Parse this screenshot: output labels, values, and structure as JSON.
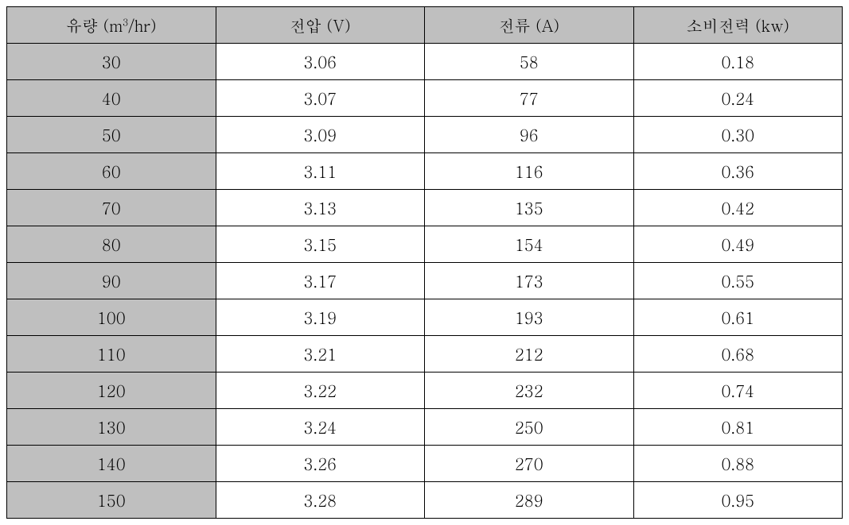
{
  "table": {
    "columns": [
      {
        "label_parts": [
          "유량 (m",
          "3",
          "/hr)"
        ],
        "has_superscript": true
      },
      {
        "label": "전압 (V)"
      },
      {
        "label": "전류 (A)"
      },
      {
        "label": "소비전력 (kw)"
      }
    ],
    "rows": [
      {
        "flow": "30",
        "voltage": "3.06",
        "current": "58",
        "power": "0.18"
      },
      {
        "flow": "40",
        "voltage": "3.07",
        "current": "77",
        "power": "0.24"
      },
      {
        "flow": "50",
        "voltage": "3.09",
        "current": "96",
        "power": "0.30"
      },
      {
        "flow": "60",
        "voltage": "3.11",
        "current": "116",
        "power": "0.36"
      },
      {
        "flow": "70",
        "voltage": "3.13",
        "current": "135",
        "power": "0.42"
      },
      {
        "flow": "80",
        "voltage": "3.15",
        "current": "154",
        "power": "0.49"
      },
      {
        "flow": "90",
        "voltage": "3.17",
        "current": "173",
        "power": "0.55"
      },
      {
        "flow": "100",
        "voltage": "3.19",
        "current": "193",
        "power": "0.61"
      },
      {
        "flow": "110",
        "voltage": "3.21",
        "current": "212",
        "power": "0.68"
      },
      {
        "flow": "120",
        "voltage": "3.22",
        "current": "232",
        "power": "0.74"
      },
      {
        "flow": "130",
        "voltage": "3.24",
        "current": "250",
        "power": "0.81"
      },
      {
        "flow": "140",
        "voltage": "3.26",
        "current": "270",
        "power": "0.88"
      },
      {
        "flow": "150",
        "voltage": "3.28",
        "current": "289",
        "power": "0.95"
      }
    ],
    "styling": {
      "header_bg_color": "#bfbfbf",
      "row_header_bg_color": "#bfbfbf",
      "data_bg_color": "#ffffff",
      "border_color": "#000000",
      "text_color": "#000000",
      "font_size": 20,
      "font_family": "Batang"
    }
  }
}
